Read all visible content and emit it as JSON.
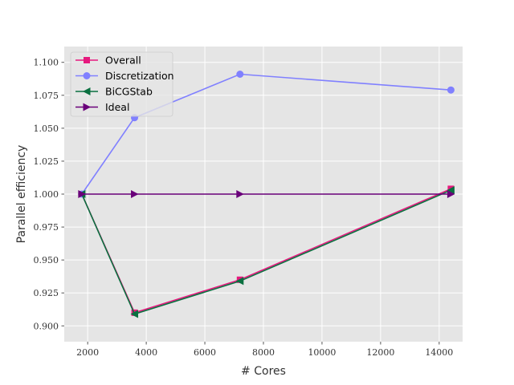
{
  "chart_data": {
    "type": "line",
    "title": "",
    "xlabel": "# Cores",
    "ylabel": "Parallel efficiency",
    "xlim": [
      1200,
      14800
    ],
    "ylim": [
      0.888,
      1.112
    ],
    "xticks": [
      2000,
      4000,
      6000,
      8000,
      10000,
      12000,
      14000
    ],
    "yticks": [
      0.9,
      0.925,
      0.95,
      0.975,
      1.0,
      1.025,
      1.05,
      1.075,
      1.1
    ],
    "xtick_labels": [
      "2000",
      "4000",
      "6000",
      "8000",
      "10000",
      "12000",
      "14000"
    ],
    "ytick_labels": [
      "0.900",
      "0.925",
      "0.950",
      "0.975",
      "1.000",
      "1.025",
      "1.050",
      "1.075",
      "1.100"
    ],
    "grid": true,
    "legend_position": "top-left",
    "x": [
      1800,
      3600,
      7200,
      14400
    ],
    "series": [
      {
        "name": "Overall",
        "values": [
          1.0,
          0.91,
          0.935,
          1.004
        ],
        "color": "#e6197e",
        "marker": "square"
      },
      {
        "name": "Discretization",
        "values": [
          1.0,
          1.058,
          1.091,
          1.079
        ],
        "color": "#8080ff",
        "marker": "circle"
      },
      {
        "name": "BiCGStab",
        "values": [
          1.0,
          0.909,
          0.934,
          1.003
        ],
        "color": "#0a7040",
        "marker": "triangle-left"
      },
      {
        "name": "Ideal",
        "values": [
          1.0,
          1.0,
          1.0,
          1.0
        ],
        "color": "#6a007a",
        "marker": "triangle-right"
      }
    ]
  }
}
